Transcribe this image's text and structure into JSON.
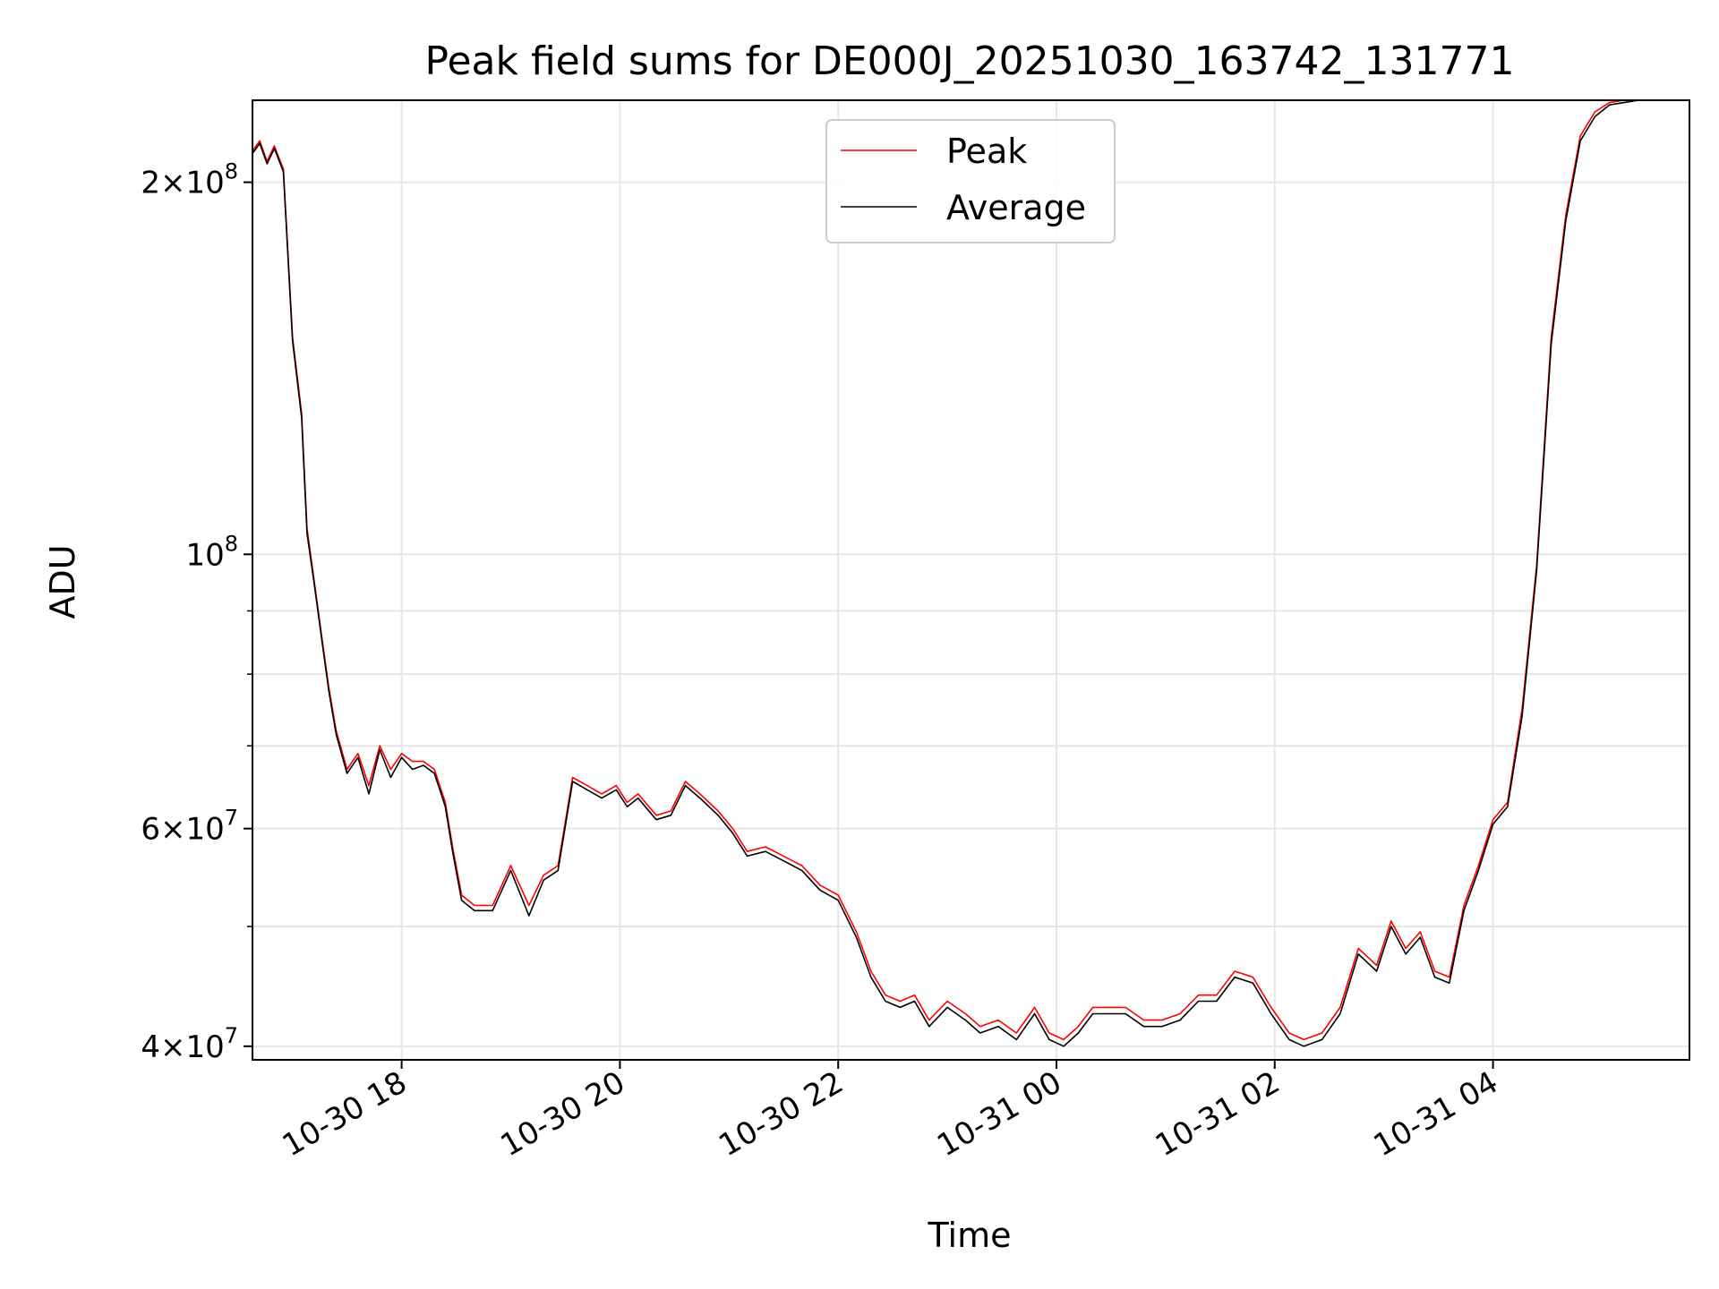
{
  "chart_data": {
    "type": "line",
    "title": "Peak field sums for DE000J_20251030_163742_131771",
    "xlabel": "Time",
    "ylabel": "ADU",
    "yscale": "log",
    "xlim": [
      "2025-10-30 16:38",
      "2025-10-31 05:48"
    ],
    "ylim": [
      39000000,
      233000000
    ],
    "xticks": [
      {
        "label": "10-30 18",
        "value": "2025-10-30 18:00"
      },
      {
        "label": "10-30 20",
        "value": "2025-10-30 20:00"
      },
      {
        "label": "10-30 22",
        "value": "2025-10-30 22:00"
      },
      {
        "label": "10-31 00",
        "value": "2025-10-31 00:00"
      },
      {
        "label": "10-31 02",
        "value": "2025-10-31 02:00"
      },
      {
        "label": "10-31 04",
        "value": "2025-10-31 04:00"
      }
    ],
    "yticks_major": [
      {
        "label_base": "2",
        "label_times": "×",
        "label_pow": "10",
        "label_exp": "8",
        "value": 200000000
      },
      {
        "label_base": "",
        "label_times": "",
        "label_pow": "10",
        "label_exp": "8",
        "value": 100000000
      },
      {
        "label_base": "6",
        "label_times": "×",
        "label_pow": "10",
        "label_exp": "7",
        "value": 60000000
      },
      {
        "label_base": "4",
        "label_times": "×",
        "label_pow": "10",
        "label_exp": "7",
        "value": 40000000
      }
    ],
    "yticks_minor": [
      50000000,
      70000000,
      80000000,
      90000000
    ],
    "grid": true,
    "legend": {
      "position": "top-center"
    },
    "series": [
      {
        "name": "Peak",
        "color": "#ff0000",
        "x": [
          "2025-10-30 16:38",
          "2025-10-30 16:42",
          "2025-10-30 16:46",
          "2025-10-30 16:50",
          "2025-10-30 16:55",
          "2025-10-30 17:00",
          "2025-10-30 17:05",
          "2025-10-30 17:08",
          "2025-10-30 17:12",
          "2025-10-30 17:16",
          "2025-10-30 17:20",
          "2025-10-30 17:24",
          "2025-10-30 17:30",
          "2025-10-30 17:36",
          "2025-10-30 17:42",
          "2025-10-30 17:48",
          "2025-10-30 17:54",
          "2025-10-30 18:00",
          "2025-10-30 18:06",
          "2025-10-30 18:12",
          "2025-10-30 18:18",
          "2025-10-30 18:24",
          "2025-10-30 18:28",
          "2025-10-30 18:33",
          "2025-10-30 18:40",
          "2025-10-30 18:50",
          "2025-10-30 19:00",
          "2025-10-30 19:10",
          "2025-10-30 19:18",
          "2025-10-30 19:26",
          "2025-10-30 19:34",
          "2025-10-30 19:42",
          "2025-10-30 19:50",
          "2025-10-30 19:58",
          "2025-10-30 20:04",
          "2025-10-30 20:10",
          "2025-10-30 20:20",
          "2025-10-30 20:28",
          "2025-10-30 20:36",
          "2025-10-30 20:44",
          "2025-10-30 20:54",
          "2025-10-30 21:02",
          "2025-10-30 21:10",
          "2025-10-30 21:20",
          "2025-10-30 21:30",
          "2025-10-30 21:40",
          "2025-10-30 21:50",
          "2025-10-30 22:00",
          "2025-10-30 22:10",
          "2025-10-30 22:18",
          "2025-10-30 22:26",
          "2025-10-30 22:34",
          "2025-10-30 22:42",
          "2025-10-30 22:50",
          "2025-10-30 23:00",
          "2025-10-30 23:10",
          "2025-10-30 23:18",
          "2025-10-30 23:28",
          "2025-10-30 23:38",
          "2025-10-30 23:48",
          "2025-10-30 23:56",
          "2025-10-31 00:04",
          "2025-10-31 00:12",
          "2025-10-31 00:20",
          "2025-10-31 00:28",
          "2025-10-31 00:38",
          "2025-10-31 00:48",
          "2025-10-31 00:58",
          "2025-10-31 01:08",
          "2025-10-31 01:18",
          "2025-10-31 01:28",
          "2025-10-31 01:38",
          "2025-10-31 01:48",
          "2025-10-31 01:58",
          "2025-10-31 02:08",
          "2025-10-31 02:16",
          "2025-10-31 02:26",
          "2025-10-31 02:36",
          "2025-10-31 02:46",
          "2025-10-31 02:56",
          "2025-10-31 03:04",
          "2025-10-31 03:12",
          "2025-10-31 03:20",
          "2025-10-31 03:28",
          "2025-10-31 03:36",
          "2025-10-31 03:44",
          "2025-10-31 03:52",
          "2025-10-31 04:00",
          "2025-10-31 04:08",
          "2025-10-31 04:16",
          "2025-10-31 04:24",
          "2025-10-31 04:32",
          "2025-10-31 04:40",
          "2025-10-31 04:48",
          "2025-10-31 04:56",
          "2025-10-31 05:04",
          "2025-10-31 05:12",
          "2025-10-31 05:20",
          "2025-10-31 05:28",
          "2025-10-31 05:36",
          "2025-10-31 05:42",
          "2025-10-31 05:48"
        ],
        "y": [
          212000000,
          216000000,
          208000000,
          214000000,
          205000000,
          150000000,
          130000000,
          105000000,
          95000000,
          86000000,
          78000000,
          72000000,
          67000000,
          69000000,
          65000000,
          70000000,
          67000000,
          69000000,
          68000000,
          68000000,
          67000000,
          63000000,
          58000000,
          53000000,
          52000000,
          52000000,
          56000000,
          52000000,
          55000000,
          56000000,
          66000000,
          65000000,
          64000000,
          65000000,
          63000000,
          64000000,
          61500000,
          62000000,
          65500000,
          64000000,
          62000000,
          60000000,
          57500000,
          58000000,
          57000000,
          56000000,
          54000000,
          53000000,
          49500000,
          46000000,
          44000000,
          43500000,
          44000000,
          42000000,
          43500000,
          42500000,
          41500000,
          42000000,
          41000000,
          43000000,
          41000000,
          40500000,
          41500000,
          43000000,
          43000000,
          43000000,
          42000000,
          42000000,
          42500000,
          44000000,
          44000000,
          46000000,
          45500000,
          43000000,
          41000000,
          40500000,
          41000000,
          43000000,
          48000000,
          46500000,
          50500000,
          48000000,
          49500000,
          46000000,
          45500000,
          52000000,
          56000000,
          61000000,
          63000000,
          75000000,
          98000000,
          150000000,
          188000000,
          218000000,
          228000000,
          232000000,
          233000000,
          233000000,
          233000000,
          233000000,
          233000000,
          233000000
        ]
      },
      {
        "name": "Average",
        "color": "#000000",
        "x": [
          "2025-10-30 16:38",
          "2025-10-30 16:42",
          "2025-10-30 16:46",
          "2025-10-30 16:50",
          "2025-10-30 16:55",
          "2025-10-30 17:00",
          "2025-10-30 17:05",
          "2025-10-30 17:08",
          "2025-10-30 17:12",
          "2025-10-30 17:16",
          "2025-10-30 17:20",
          "2025-10-30 17:24",
          "2025-10-30 17:30",
          "2025-10-30 17:36",
          "2025-10-30 17:42",
          "2025-10-30 17:48",
          "2025-10-30 17:54",
          "2025-10-30 18:00",
          "2025-10-30 18:06",
          "2025-10-30 18:12",
          "2025-10-30 18:18",
          "2025-10-30 18:24",
          "2025-10-30 18:28",
          "2025-10-30 18:33",
          "2025-10-30 18:40",
          "2025-10-30 18:50",
          "2025-10-30 19:00",
          "2025-10-30 19:10",
          "2025-10-30 19:18",
          "2025-10-30 19:26",
          "2025-10-30 19:34",
          "2025-10-30 19:42",
          "2025-10-30 19:50",
          "2025-10-30 19:58",
          "2025-10-30 20:04",
          "2025-10-30 20:10",
          "2025-10-30 20:20",
          "2025-10-30 20:28",
          "2025-10-30 20:36",
          "2025-10-30 20:44",
          "2025-10-30 20:54",
          "2025-10-30 21:02",
          "2025-10-30 21:10",
          "2025-10-30 21:20",
          "2025-10-30 21:30",
          "2025-10-30 21:40",
          "2025-10-30 21:50",
          "2025-10-30 22:00",
          "2025-10-30 22:10",
          "2025-10-30 22:18",
          "2025-10-30 22:26",
          "2025-10-30 22:34",
          "2025-10-30 22:42",
          "2025-10-30 22:50",
          "2025-10-30 23:00",
          "2025-10-30 23:10",
          "2025-10-30 23:18",
          "2025-10-30 23:28",
          "2025-10-30 23:38",
          "2025-10-30 23:48",
          "2025-10-30 23:56",
          "2025-10-31 00:04",
          "2025-10-31 00:12",
          "2025-10-31 00:20",
          "2025-10-31 00:28",
          "2025-10-31 00:38",
          "2025-10-31 00:48",
          "2025-10-31 00:58",
          "2025-10-31 01:08",
          "2025-10-31 01:18",
          "2025-10-31 01:28",
          "2025-10-31 01:38",
          "2025-10-31 01:48",
          "2025-10-31 01:58",
          "2025-10-31 02:08",
          "2025-10-31 02:16",
          "2025-10-31 02:26",
          "2025-10-31 02:36",
          "2025-10-31 02:46",
          "2025-10-31 02:56",
          "2025-10-31 03:04",
          "2025-10-31 03:12",
          "2025-10-31 03:20",
          "2025-10-31 03:28",
          "2025-10-31 03:36",
          "2025-10-31 03:44",
          "2025-10-31 03:52",
          "2025-10-31 04:00",
          "2025-10-31 04:08",
          "2025-10-31 04:16",
          "2025-10-31 04:24",
          "2025-10-31 04:32",
          "2025-10-31 04:40",
          "2025-10-31 04:48",
          "2025-10-31 04:56",
          "2025-10-31 05:04",
          "2025-10-31 05:12",
          "2025-10-31 05:20",
          "2025-10-31 05:28",
          "2025-10-31 05:36",
          "2025-10-31 05:42",
          "2025-10-31 05:48"
        ],
        "y": [
          211000000,
          215000000,
          207000000,
          213000000,
          204000000,
          149000000,
          129000000,
          104000000,
          94500000,
          85500000,
          77500000,
          71500000,
          66500000,
          68500000,
          64000000,
          69500000,
          66000000,
          68500000,
          67000000,
          67500000,
          66500000,
          62500000,
          57500000,
          52500000,
          51500000,
          51500000,
          55500000,
          51000000,
          54500000,
          55500000,
          65500000,
          64500000,
          63500000,
          64500000,
          62500000,
          63500000,
          61000000,
          61500000,
          65000000,
          63500000,
          61500000,
          59500000,
          57000000,
          57500000,
          56500000,
          55500000,
          53500000,
          52500000,
          49000000,
          45500000,
          43500000,
          43000000,
          43500000,
          41500000,
          43000000,
          42000000,
          41000000,
          41500000,
          40500000,
          42500000,
          40500000,
          40000000,
          41000000,
          42500000,
          42500000,
          42500000,
          41500000,
          41500000,
          42000000,
          43500000,
          43500000,
          45500000,
          45000000,
          42500000,
          40500000,
          40000000,
          40500000,
          42500000,
          47500000,
          46000000,
          50000000,
          47500000,
          49000000,
          45500000,
          45000000,
          51500000,
          55500000,
          60500000,
          62500000,
          74000000,
          97000000,
          148000000,
          186000000,
          216000000,
          226000000,
          231000000,
          232000000,
          233000000,
          233000000,
          233000000,
          233000000,
          233000000
        ]
      }
    ]
  }
}
